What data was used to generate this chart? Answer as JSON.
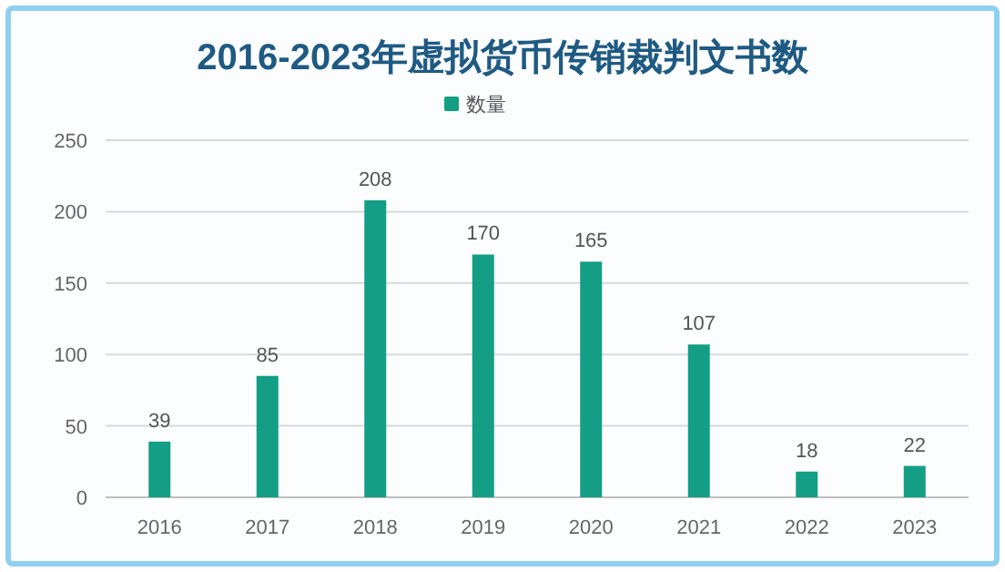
{
  "chart_data": {
    "type": "bar",
    "title": "2016-2023年虚拟货币传销裁判文书数",
    "categories": [
      "2016",
      "2017",
      "2018",
      "2019",
      "2020",
      "2021",
      "2022",
      "2023"
    ],
    "series": [
      {
        "name": "数量",
        "color": "#139e85",
        "values": [
          39,
          85,
          208,
          170,
          165,
          107,
          18,
          22
        ]
      }
    ],
    "ylim": [
      0,
      250
    ],
    "yticks": [
      0,
      50,
      100,
      150,
      200,
      250
    ],
    "grid": "y",
    "legend": "top",
    "data_labels": true
  }
}
